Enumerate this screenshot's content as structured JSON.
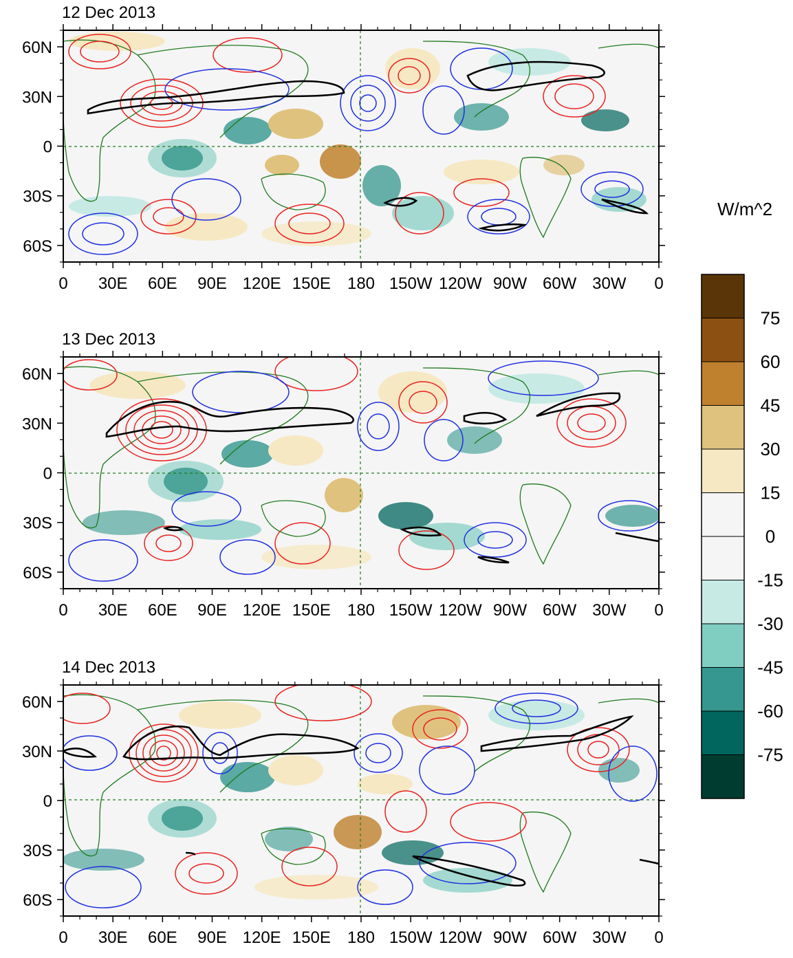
{
  "figure": {
    "panels": [
      {
        "date": "12 Dec 2013"
      },
      {
        "date": "13 Dec 2013"
      },
      {
        "date": "14 Dec 2013"
      }
    ],
    "lon_tick_labels": [
      "0",
      "30E",
      "60E",
      "90E",
      "120E",
      "150E",
      "180",
      "150W",
      "120W",
      "90W",
      "60W",
      "30W",
      "0"
    ],
    "lat_tick_labels": [
      "60N",
      "30N",
      "0",
      "30S",
      "60S"
    ],
    "lat_tick_values": [
      60,
      30,
      0,
      -30,
      -60
    ],
    "lat_range": [
      -70,
      70
    ],
    "lon_range": [
      0,
      360
    ]
  },
  "colorbar": {
    "units": "W/m^2",
    "labels": [
      "75",
      "60",
      "45",
      "30",
      "15",
      "0",
      "-15",
      "-30",
      "-45",
      "-60",
      "-75"
    ],
    "colors": [
      "#5a3507",
      "#8c5112",
      "#bf812d",
      "#dfc27d",
      "#f6e8c3",
      "#f5f5f5",
      "#f5f5f5",
      "#c7eae5",
      "#80cdc1",
      "#35978f",
      "#01665e",
      "#003c30"
    ]
  },
  "contour_colors": {
    "positive": "#e8211f",
    "negative": "#1f2fe0",
    "jet": "#000000",
    "coastline": "#1e7a1e"
  }
}
